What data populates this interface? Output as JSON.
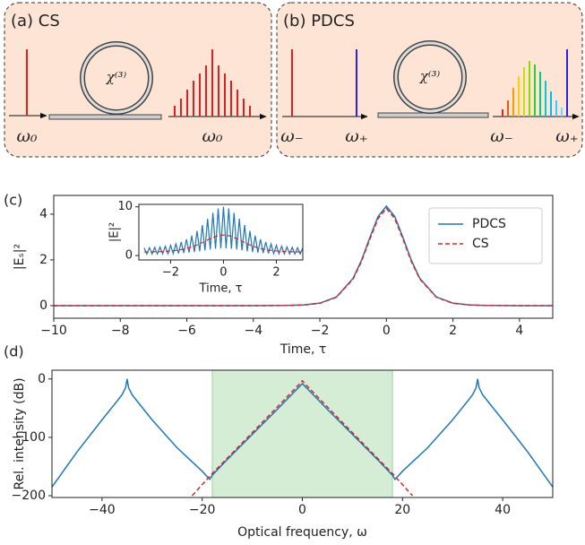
{
  "schematics": [
    {
      "label": "(a) CS",
      "ring": "χ⁽³⁾",
      "freq_labels": [
        "ω₀",
        "ω₀"
      ]
    },
    {
      "label": "(b) PDCS",
      "ring": "χ⁽³⁾",
      "freq_labels": [
        "ω₋",
        "ω₊",
        "ω₋",
        "ω₊"
      ]
    }
  ],
  "chart_data": [
    {
      "type": "line",
      "panel_label": "(c)",
      "xlabel": "Time, τ",
      "ylabel": "|Eₛ|²",
      "legend": "upper right",
      "xlim": [
        -10,
        5
      ],
      "ylim": [
        -0.55,
        4.82
      ],
      "xticks": [
        {
          "value": -10,
          "label": "−10"
        },
        {
          "value": -8,
          "label": "−8"
        },
        {
          "value": -6,
          "label": "−6"
        },
        {
          "value": -4,
          "label": "−4"
        },
        {
          "value": -2,
          "label": "−2"
        },
        0,
        2,
        4
      ],
      "yticks": [
        0,
        2,
        4
      ],
      "x": [
        -10,
        -8,
        -6,
        -4,
        -3,
        -2.5,
        -2,
        -1.5,
        -1,
        -0.75,
        -0.5,
        -0.25,
        0,
        0.25,
        0.5,
        0.75,
        1,
        1.5,
        2,
        2.5,
        3,
        4,
        5
      ],
      "series": [
        {
          "name": "PDCS",
          "color": "#1f77b4",
          "linestyle": "solid",
          "values": [
            0,
            0,
            0,
            0,
            0.01,
            0.03,
            0.11,
            0.38,
            1.2,
            1.98,
            2.97,
            3.9,
            4.35,
            3.9,
            2.97,
            1.98,
            1.2,
            0.38,
            0.11,
            0.03,
            0.01,
            0,
            0
          ]
        },
        {
          "name": "CS",
          "color": "#d62728",
          "linestyle": "dashed",
          "values": [
            0,
            0,
            0,
            0,
            0.01,
            0.03,
            0.1,
            0.37,
            1.17,
            1.93,
            2.9,
            3.81,
            4.25,
            3.81,
            2.9,
            1.93,
            1.17,
            0.37,
            0.1,
            0.03,
            0.01,
            0,
            0
          ]
        }
      ]
    },
    {
      "type": "line",
      "xlabel": "Time, τ",
      "ylabel": "|E|²",
      "xlim": [
        -3.2,
        3.0
      ],
      "ylim": [
        -0.9,
        10.5
      ],
      "xticks": [
        {
          "value": -2,
          "label": "−2"
        },
        0,
        2
      ],
      "yticks": [
        0,
        10
      ],
      "x": [
        -3,
        -2.9,
        -2.8,
        -2.7,
        -2.6,
        -2.5,
        -2.4,
        -2.3,
        -2.2,
        -2.1,
        -2,
        -1.9,
        -1.8,
        -1.7,
        -1.6,
        -1.5,
        -1.4,
        -1.3,
        -1.2,
        -1.1,
        -1,
        -0.9,
        -0.8,
        -0.7,
        -0.6,
        -0.5,
        -0.4,
        -0.3,
        -0.2,
        -0.1,
        0,
        0.1,
        0.2,
        0.3,
        0.4,
        0.5,
        0.6,
        0.7,
        0.8,
        0.9,
        1,
        1.1,
        1.2,
        1.3,
        1.4,
        1.5,
        1.6,
        1.7,
        1.8,
        1.9,
        2,
        2.1,
        2.2,
        2.3,
        2.4,
        2.5,
        2.6,
        2.7,
        2.8,
        2.9,
        3
      ],
      "series": [
        {
          "color": "#1f77b4",
          "linestyle": "solid",
          "values": [
            1.58,
            0.31,
            1.62,
            0.32,
            1.69,
            0.33,
            1.78,
            0.35,
            1.91,
            0.37,
            2.1,
            0.4,
            2.38,
            0.45,
            2.78,
            0.52,
            3.34,
            0.61,
            4.09,
            0.73,
            5.07,
            0.88,
            6.25,
            1.06,
            7.55,
            1.24,
            8.77,
            1.4,
            9.67,
            1.49,
            10.0,
            1.49,
            9.67,
            1.4,
            8.77,
            1.24,
            7.55,
            1.06,
            6.25,
            0.88,
            5.07,
            0.73,
            4.09,
            0.61,
            3.34,
            0.52,
            2.78,
            0.45,
            2.38,
            0.4,
            2.1,
            0.37,
            1.91,
            0.35,
            1.78,
            0.33,
            1.69,
            0.32,
            1.62,
            0.31,
            1.58
          ]
        },
        {
          "color": "#d62728",
          "linestyle": "dashed",
          "values": [
            0.74,
            0.74,
            0.75,
            0.76,
            0.78,
            0.79,
            0.81,
            0.84,
            0.87,
            0.9,
            0.95,
            1.0,
            1.06,
            1.14,
            1.23,
            1.33,
            1.46,
            1.6,
            1.77,
            1.96,
            2.17,
            2.4,
            2.66,
            2.92,
            3.19,
            3.45,
            3.7,
            3.91,
            4.06,
            4.17,
            4.2,
            4.17,
            4.06,
            3.91,
            3.7,
            3.45,
            3.19,
            2.92,
            2.66,
            2.4,
            2.17,
            1.96,
            1.77,
            1.6,
            1.46,
            1.33,
            1.23,
            1.14,
            1.06,
            1.0,
            0.95,
            0.9,
            0.87,
            0.84,
            0.81,
            0.79,
            0.78,
            0.76,
            0.75,
            0.74,
            0.74
          ]
        }
      ]
    },
    {
      "type": "line",
      "panel_label": "(d)",
      "xlabel": "Optical frequency, ω",
      "ylabel": "Rel. intensity (dB)",
      "xlim": [
        -50,
        50
      ],
      "ylim": [
        -203,
        15
      ],
      "xticks": [
        {
          "value": -40,
          "label": "−40"
        },
        {
          "value": -20,
          "label": "−20"
        },
        0,
        20,
        40
      ],
      "yticks": [
        {
          "value": -200,
          "label": "−200"
        },
        {
          "value": -100,
          "label": "−100"
        },
        0
      ],
      "span": [
        -18,
        18
      ],
      "span_color": "#2ca02c",
      "series": [
        {
          "color": "#1f77b4",
          "linestyle": "solid",
          "x": [
            -50,
            -45,
            -40,
            -37,
            -36,
            -35.3,
            -35,
            -34.7,
            -34,
            -33,
            -30,
            -25,
            -20,
            -18.5,
            -18,
            -15,
            -10,
            -5,
            0,
            5,
            10,
            15,
            18,
            18.5,
            20,
            25,
            30,
            33,
            34,
            34.7,
            35,
            35.3,
            36,
            37,
            40,
            45,
            50
          ],
          "values": [
            -185,
            -125,
            -70,
            -38,
            -27,
            -15,
            0,
            -15,
            -27,
            -38,
            -70,
            -118,
            -158,
            -172,
            -165,
            -138,
            -95,
            -52,
            -8,
            -52,
            -95,
            -138,
            -165,
            -172,
            -158,
            -118,
            -70,
            -38,
            -27,
            -15,
            0,
            -15,
            -27,
            -38,
            -70,
            -125,
            -185
          ]
        },
        {
          "color": "#d62728",
          "linestyle": "dashed",
          "x": [
            -22,
            -18,
            -10,
            -5,
            -0.5,
            0,
            0.5,
            5,
            10,
            18,
            22
          ],
          "values": [
            -200,
            -162,
            -92,
            -48,
            -8,
            -3,
            -8,
            -48,
            -92,
            -162,
            -200
          ]
        }
      ]
    }
  ]
}
